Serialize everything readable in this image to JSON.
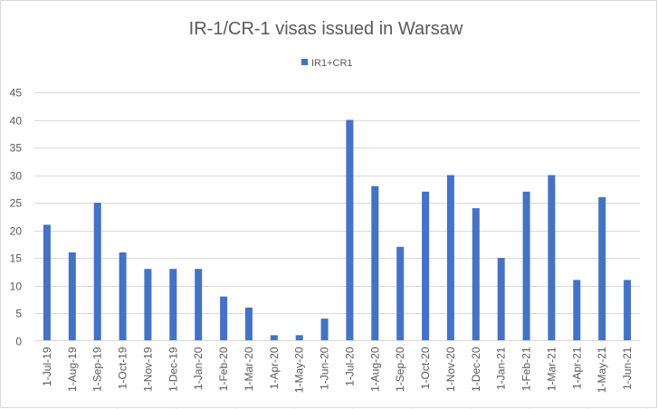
{
  "chart_data": {
    "type": "bar",
    "title": "IR-1/CR-1 visas issued in Warsaw",
    "xlabel": "",
    "ylabel": "",
    "categories": [
      "1-Jul-19",
      "1-Aug-19",
      "1-Sep-19",
      "1-Oct-19",
      "1-Nov-19",
      "1-Dec-19",
      "1-Jan-20",
      "1-Feb-20",
      "1-Mar-20",
      "1-Apr-20",
      "1-May-20",
      "1-Jun-20",
      "1-Jul-20",
      "1-Aug-20",
      "1-Sep-20",
      "1-Oct-20",
      "1-Nov-20",
      "1-Dec-20",
      "1-Jan-21",
      "1-Feb-21",
      "1-Mar-21",
      "1-Apr-21",
      "1-May-21",
      "1-Jun-21"
    ],
    "series": [
      {
        "name": "IR1+CR1",
        "color": "#4472C4",
        "values": [
          21,
          16,
          25,
          16,
          13,
          13,
          13,
          8,
          6,
          1,
          1,
          4,
          40,
          28,
          17,
          27,
          30,
          24,
          15,
          27,
          30,
          11,
          26,
          11
        ]
      }
    ],
    "ylim": [
      0,
      45
    ],
    "yticks": [
      "0",
      "5",
      "10",
      "15",
      "20",
      "25",
      "30",
      "35",
      "40",
      "45"
    ],
    "grid": true,
    "legend_position": "top"
  }
}
